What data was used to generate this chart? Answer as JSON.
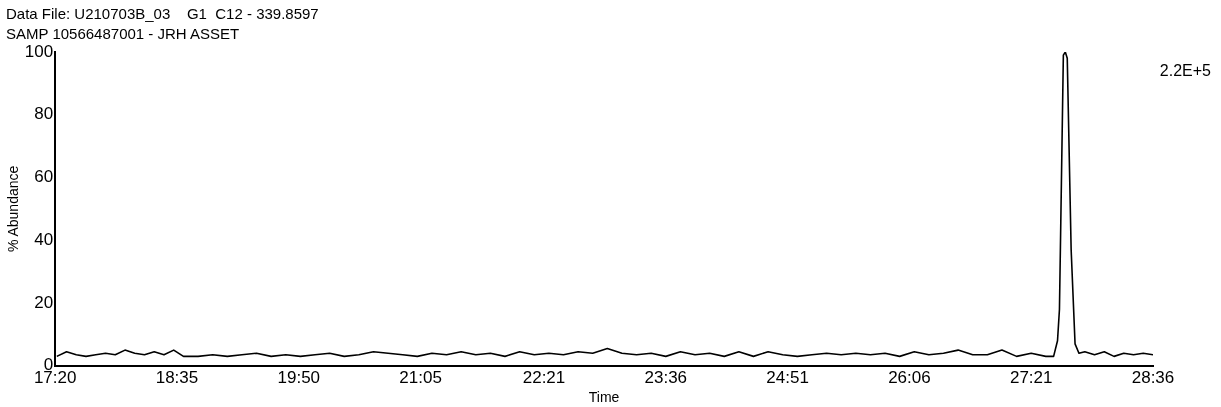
{
  "chart_data": {
    "type": "line",
    "title": "Data File: U210703B_03    G1  C12 - 339.8597",
    "subtitle": "SAMP 10566487001 - JRH ASSET",
    "xlabel": "Time",
    "ylabel": "% Abundance",
    "annotations": [
      "2.2E+5"
    ],
    "x": [
      17.35,
      17.45,
      17.55,
      17.65,
      17.75,
      17.85,
      17.95,
      18.05,
      18.15,
      18.25,
      18.35,
      18.45,
      18.55,
      18.65,
      18.8,
      18.95,
      19.1,
      19.25,
      19.4,
      19.55,
      19.7,
      19.85,
      20.0,
      20.15,
      20.3,
      20.45,
      20.6,
      20.75,
      20.9,
      21.05,
      21.2,
      21.35,
      21.5,
      21.65,
      21.8,
      21.95,
      22.1,
      22.25,
      22.4,
      22.55,
      22.7,
      22.85,
      23.0,
      23.15,
      23.3,
      23.45,
      23.6,
      23.75,
      23.9,
      24.05,
      24.2,
      24.35,
      24.5,
      24.65,
      24.8,
      24.95,
      25.1,
      25.25,
      25.4,
      25.55,
      25.7,
      25.85,
      26.0,
      26.15,
      26.3,
      26.45,
      26.6,
      26.75,
      26.9,
      27.05,
      27.2,
      27.35,
      27.5,
      27.58,
      27.62,
      27.64,
      27.68,
      27.7,
      27.72,
      27.76,
      27.8,
      27.84,
      27.9,
      28.0,
      28.1,
      28.2,
      28.3,
      28.4,
      28.5,
      28.6
    ],
    "series": [
      {
        "color": "#000000",
        "values": [
          3,
          4.5,
          3.5,
          3,
          3.5,
          4,
          3.5,
          5,
          4,
          3.5,
          4.5,
          3.5,
          5,
          3,
          3,
          3.5,
          3,
          3.5,
          4,
          3,
          3.5,
          3,
          3.5,
          4,
          3,
          3.5,
          4.5,
          4,
          3.5,
          3,
          4,
          3.5,
          4.5,
          3.5,
          4,
          3,
          4.5,
          3.5,
          4,
          3.5,
          4.5,
          4,
          5.5,
          4,
          3.5,
          4,
          3,
          4.5,
          3.5,
          4,
          3,
          4.5,
          3,
          4.5,
          3.5,
          3,
          3.5,
          4,
          3.5,
          4,
          3.5,
          4,
          3,
          4.5,
          3.5,
          4,
          5,
          3.5,
          3.5,
          5,
          3,
          4,
          3,
          3,
          8,
          18,
          99,
          100,
          98,
          37,
          7,
          4,
          4.5,
          3.5,
          4.5,
          3,
          4,
          3.5,
          4,
          3.5
        ]
      }
    ],
    "xlim": [
      17.3333,
      28.6
    ],
    "xticks": [
      {
        "value": 17.3333,
        "label": "17:20"
      },
      {
        "value": 18.5833,
        "label": "18:35"
      },
      {
        "value": 19.8333,
        "label": "19:50"
      },
      {
        "value": 21.0833,
        "label": "21:05"
      },
      {
        "value": 22.35,
        "label": "22:21"
      },
      {
        "value": 23.6,
        "label": "23:36"
      },
      {
        "value": 24.85,
        "label": "24:51"
      },
      {
        "value": 26.1,
        "label": "26:06"
      },
      {
        "value": 27.35,
        "label": "27:21"
      },
      {
        "value": 28.6,
        "label": "28:36"
      }
    ],
    "ylim": [
      0,
      100
    ],
    "yticks": [
      0,
      20,
      40,
      60,
      80,
      100
    ],
    "grid": false,
    "legend": false,
    "marker": "none",
    "line_style": "solid"
  }
}
